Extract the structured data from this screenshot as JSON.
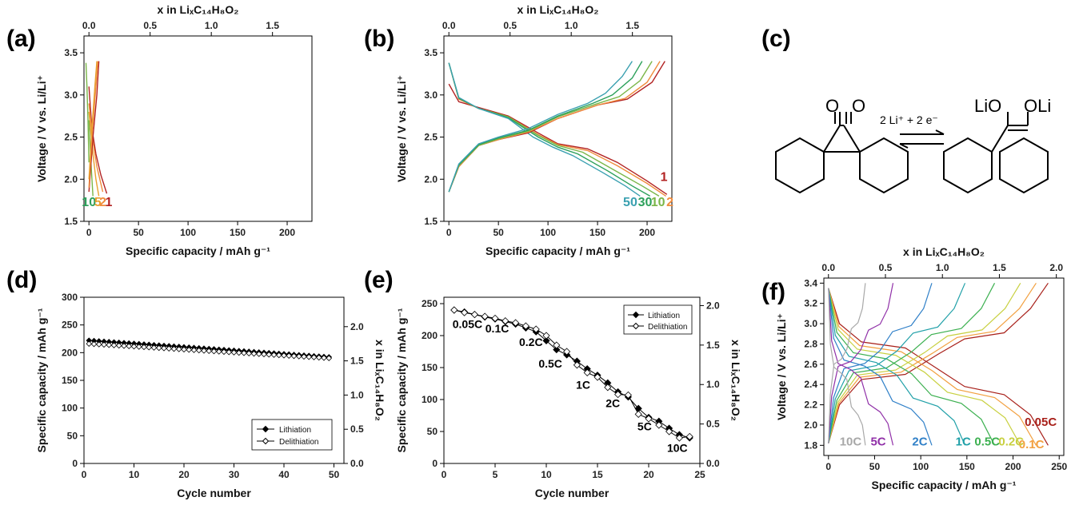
{
  "panels": {
    "a": "(a)",
    "b": "(b)",
    "c": "(c)",
    "d": "(d)",
    "e": "(e)",
    "f": "(f)"
  },
  "colors": {
    "c1": "#b22222",
    "c2": "#f08c3c",
    "c5": "#e8a030",
    "c10": "#7ab648",
    "c30": "#2ca05a",
    "c50": "#3aa0b0",
    "f005": "#a8201a",
    "f01": "#f2a040",
    "f02": "#c8d040",
    "f05": "#3cb050",
    "f1": "#20a0a8",
    "f2": "#3080c8",
    "f5": "#9030a8",
    "f10": "#a8a8a8"
  },
  "chart_data": [
    {
      "id": "a",
      "type": "line",
      "xlabel": "Specific capacity / mAh g⁻¹",
      "ylabel": "Voltage / V vs. Li/Li⁺",
      "x2label": "x in LiₓC₁₄H₈O₂",
      "xlim": [
        -5,
        225
      ],
      "ylim": [
        1.5,
        3.7
      ],
      "xticks": [
        0,
        50,
        100,
        150,
        200
      ],
      "yticks": [
        1.5,
        2.0,
        2.5,
        3.0,
        3.5
      ],
      "x2ticks": [
        0.0,
        0.5,
        1.0,
        1.5
      ],
      "x2_per_x": 0.0081,
      "series": [
        {
          "name": "1",
          "color": "c1",
          "points": [
            [
              0,
              3.1
            ],
            [
              3,
              2.6
            ],
            [
              7,
              2.3
            ],
            [
              12,
              2.05
            ],
            [
              18,
              1.83
            ]
          ]
        },
        {
          "name": "2",
          "color": "c2",
          "points": [
            [
              0,
              2.9
            ],
            [
              4,
              2.45
            ],
            [
              8,
              2.15
            ],
            [
              14,
              1.85
            ]
          ]
        },
        {
          "name": "5",
          "color": "c5",
          "points": [
            [
              0,
              2.8
            ],
            [
              4,
              2.3
            ],
            [
              7,
              2.0
            ],
            [
              10,
              1.8
            ]
          ]
        },
        {
          "name": "10",
          "color": "c10",
          "points": [
            [
              0,
              2.7
            ],
            [
              2,
              2.2
            ],
            [
              4,
              1.8
            ]
          ]
        },
        {
          "name": "c1",
          "color": "c1",
          "points": [
            [
              0,
              1.85
            ],
            [
              4,
              2.5
            ],
            [
              8,
              3.0
            ],
            [
              10,
              3.4
            ]
          ]
        },
        {
          "name": "c2",
          "color": "c2",
          "points": [
            [
              0,
              1.9
            ],
            [
              3,
              2.5
            ],
            [
              7,
              3.1
            ],
            [
              9,
              3.4
            ]
          ]
        },
        {
          "name": "c5",
          "color": "c5",
          "points": [
            [
              0,
              2.0
            ],
            [
              3,
              2.6
            ],
            [
              6,
              3.1
            ],
            [
              8,
              3.4
            ]
          ]
        },
        {
          "name": "c10",
          "color": "c10",
          "points": [
            [
              0,
              2.2
            ],
            [
              -1,
              2.7
            ],
            [
              -2,
              3.1
            ],
            [
              -3,
              3.38
            ]
          ]
        }
      ],
      "annotations": [
        {
          "text": "10",
          "x": 0,
          "y": 1.68,
          "color": "c30"
        },
        {
          "text": "5",
          "x": 9,
          "y": 1.68,
          "color": "c5"
        },
        {
          "text": "2",
          "x": 14,
          "y": 1.68,
          "color": "c2"
        },
        {
          "text": "1",
          "x": 20,
          "y": 1.68,
          "color": "c1"
        }
      ]
    },
    {
      "id": "b",
      "type": "line",
      "xlabel": "Specific capacity / mAh g⁻¹",
      "ylabel": "Voltage / V vs. Li/Li⁺",
      "x2label": "x in LiₓC₁₄H₈O₂",
      "xlim": [
        -5,
        225
      ],
      "ylim": [
        1.5,
        3.7
      ],
      "xticks": [
        0,
        50,
        100,
        150,
        200
      ],
      "yticks": [
        1.5,
        2.0,
        2.5,
        3.0,
        3.5
      ],
      "x2ticks": [
        0.0,
        0.5,
        1.0,
        1.5
      ],
      "x2_per_x": 0.0081,
      "series": [
        {
          "name": "1",
          "color": "c1",
          "points": [
            [
              0,
              3.13
            ],
            [
              10,
              2.92
            ],
            [
              30,
              2.85
            ],
            [
              60,
              2.75
            ],
            [
              90,
              2.55
            ],
            [
              110,
              2.42
            ],
            [
              140,
              2.36
            ],
            [
              170,
              2.2
            ],
            [
              200,
              1.98
            ],
            [
              220,
              1.82
            ]
          ]
        },
        {
          "name": "2",
          "color": "c2",
          "points": [
            [
              0,
              3.38
            ],
            [
              10,
              2.95
            ],
            [
              30,
              2.84
            ],
            [
              60,
              2.74
            ],
            [
              90,
              2.53
            ],
            [
              110,
              2.41
            ],
            [
              140,
              2.34
            ],
            [
              170,
              2.16
            ],
            [
              200,
              1.95
            ],
            [
              219,
              1.8
            ]
          ]
        },
        {
          "name": "10",
          "color": "c10",
          "points": [
            [
              0,
              3.38
            ],
            [
              10,
              2.96
            ],
            [
              30,
              2.84
            ],
            [
              60,
              2.74
            ],
            [
              90,
              2.52
            ],
            [
              110,
              2.4
            ],
            [
              135,
              2.32
            ],
            [
              165,
              2.12
            ],
            [
              195,
              1.92
            ],
            [
              212,
              1.8
            ]
          ]
        },
        {
          "name": "30",
          "color": "c30",
          "points": [
            [
              0,
              3.38
            ],
            [
              10,
              2.96
            ],
            [
              30,
              2.84
            ],
            [
              60,
              2.73
            ],
            [
              90,
              2.5
            ],
            [
              110,
              2.38
            ],
            [
              130,
              2.3
            ],
            [
              160,
              2.1
            ],
            [
              185,
              1.92
            ],
            [
              203,
              1.8
            ]
          ]
        },
        {
          "name": "50",
          "color": "c50",
          "points": [
            [
              0,
              3.38
            ],
            [
              10,
              2.97
            ],
            [
              30,
              2.84
            ],
            [
              60,
              2.72
            ],
            [
              85,
              2.5
            ],
            [
              105,
              2.38
            ],
            [
              125,
              2.28
            ],
            [
              155,
              2.08
            ],
            [
              178,
              1.92
            ],
            [
              193,
              1.8
            ]
          ]
        },
        {
          "name": "1c",
          "color": "c1",
          "points": [
            [
              0,
              1.85
            ],
            [
              10,
              2.15
            ],
            [
              30,
              2.4
            ],
            [
              50,
              2.47
            ],
            [
              80,
              2.55
            ],
            [
              110,
              2.72
            ],
            [
              150,
              2.88
            ],
            [
              180,
              2.95
            ],
            [
              205,
              3.15
            ],
            [
              218,
              3.4
            ]
          ]
        },
        {
          "name": "2c",
          "color": "c2",
          "points": [
            [
              0,
              1.85
            ],
            [
              10,
              2.15
            ],
            [
              30,
              2.4
            ],
            [
              50,
              2.47
            ],
            [
              80,
              2.56
            ],
            [
              110,
              2.72
            ],
            [
              150,
              2.88
            ],
            [
              178,
              2.96
            ],
            [
              200,
              3.15
            ],
            [
              213,
              3.4
            ]
          ]
        },
        {
          "name": "10c",
          "color": "c10",
          "points": [
            [
              0,
              1.85
            ],
            [
              10,
              2.16
            ],
            [
              30,
              2.4
            ],
            [
              50,
              2.48
            ],
            [
              80,
              2.57
            ],
            [
              110,
              2.74
            ],
            [
              148,
              2.89
            ],
            [
              172,
              2.98
            ],
            [
              193,
              3.17
            ],
            [
              205,
              3.4
            ]
          ]
        },
        {
          "name": "30c",
          "color": "c30",
          "points": [
            [
              0,
              1.85
            ],
            [
              10,
              2.17
            ],
            [
              30,
              2.41
            ],
            [
              50,
              2.49
            ],
            [
              80,
              2.58
            ],
            [
              110,
              2.75
            ],
            [
              145,
              2.9
            ],
            [
              165,
              3.0
            ],
            [
              185,
              3.2
            ],
            [
              195,
              3.4
            ]
          ]
        },
        {
          "name": "50c",
          "color": "c50",
          "points": [
            [
              0,
              1.85
            ],
            [
              10,
              2.18
            ],
            [
              30,
              2.42
            ],
            [
              50,
              2.5
            ],
            [
              80,
              2.6
            ],
            [
              110,
              2.77
            ],
            [
              140,
              2.9
            ],
            [
              158,
              3.02
            ],
            [
              175,
              3.22
            ],
            [
              185,
              3.4
            ]
          ]
        }
      ],
      "annotations": [
        {
          "text": "1",
          "x": 217,
          "y": 1.98,
          "color": "c1"
        },
        {
          "text": "50",
          "x": 183,
          "y": 1.68,
          "color": "c50"
        },
        {
          "text": "30",
          "x": 198,
          "y": 1.68,
          "color": "c30"
        },
        {
          "text": "10",
          "x": 211,
          "y": 1.68,
          "color": "c10"
        },
        {
          "text": "2",
          "x": 223,
          "y": 1.68,
          "color": "c2"
        }
      ]
    },
    {
      "id": "d",
      "type": "scatter",
      "xlabel": "Cycle number",
      "ylabel": "Specific capacity / mAh g⁻¹",
      "y2label": "x in LiₓC₁₄H₈O₂",
      "xlim": [
        0,
        52
      ],
      "ylim": [
        0,
        300
      ],
      "xticks": [
        0,
        10,
        20,
        30,
        40,
        50
      ],
      "yticks": [
        0,
        50,
        100,
        150,
        200,
        250,
        300
      ],
      "y2ticks": [
        0.0,
        0.5,
        1.0,
        1.5,
        2.0
      ],
      "y2_per_y": 0.0081,
      "legend": "bottom-right",
      "series": [
        {
          "name": "Lithiation",
          "marker": "filled-diamond",
          "start": 222,
          "end": 192,
          "x_start": 1,
          "x_end": 49
        },
        {
          "name": "Delithiation",
          "marker": "open-diamond",
          "start": 216,
          "end": 190,
          "x_start": 1,
          "x_end": 49
        }
      ]
    },
    {
      "id": "e",
      "type": "line",
      "xlabel": "Cycle number",
      "ylabel": "Specific capacity / mAh g⁻¹",
      "y2label": "x in LiₓC₁₄H₈O₂",
      "xlim": [
        0,
        25
      ],
      "ylim": [
        0,
        260
      ],
      "xticks": [
        0,
        5,
        10,
        15,
        20,
        25
      ],
      "yticks": [
        0,
        50,
        100,
        150,
        200,
        250
      ],
      "y2ticks": [
        0.0,
        0.5,
        1.0,
        1.5,
        2.0
      ],
      "y2_per_y": 0.0081,
      "legend": "top-right",
      "series": [
        {
          "name": "Lithiation",
          "marker": "filled-diamond",
          "x": [
            1,
            2,
            3,
            4,
            5,
            6,
            7,
            8,
            9,
            10,
            11,
            12,
            13,
            14,
            15,
            16,
            17,
            18,
            19,
            20,
            21,
            22,
            23,
            24
          ],
          "values": [
            240,
            237,
            233,
            229,
            226,
            222,
            218,
            212,
            206,
            192,
            178,
            170,
            160,
            148,
            138,
            126,
            112,
            104,
            86,
            72,
            66,
            55,
            45,
            40
          ]
        },
        {
          "name": "Delithiation",
          "marker": "open-diamond",
          "x": [
            1,
            2,
            3,
            4,
            5,
            6,
            7,
            8,
            9,
            10,
            11,
            12,
            13,
            14,
            15,
            16,
            17,
            18,
            19,
            20,
            21,
            22,
            23,
            24
          ],
          "values": [
            240,
            236,
            233,
            230,
            227,
            223,
            220,
            215,
            210,
            200,
            185,
            175,
            154,
            142,
            135,
            119,
            108,
            107,
            77,
            70,
            60,
            50,
            40,
            42
          ]
        }
      ],
      "annotations": [
        {
          "text": "0.05C",
          "x": 2.3,
          "y": 212
        },
        {
          "text": "0.1C",
          "x": 5.2,
          "y": 205
        },
        {
          "text": "0.2C",
          "x": 8.5,
          "y": 184
        },
        {
          "text": "0.5C",
          "x": 10.4,
          "y": 150
        },
        {
          "text": "1C",
          "x": 13.6,
          "y": 117
        },
        {
          "text": "2C",
          "x": 16.5,
          "y": 88
        },
        {
          "text": "5C",
          "x": 19.6,
          "y": 52
        },
        {
          "text": "10C",
          "x": 22.8,
          "y": 18
        }
      ]
    },
    {
      "id": "f",
      "type": "line",
      "xlabel": "Specific capacity / mAh g⁻¹",
      "ylabel": "Voltage / V vs. Li/Li⁺",
      "x2label": "x in LiₓC₁₄H₈O₂",
      "xlim": [
        -5,
        255
      ],
      "ylim": [
        1.7,
        3.45
      ],
      "xticks": [
        0,
        50,
        100,
        150,
        200,
        250
      ],
      "yticks": [
        1.8,
        2.0,
        2.2,
        2.4,
        2.6,
        2.8,
        3.0,
        3.2,
        3.4
      ],
      "x2ticks": [
        0.0,
        0.5,
        1.0,
        1.5,
        2.0
      ],
      "x2_per_x": 0.0081,
      "series": [
        {
          "name": "0.05C",
          "color": "f005",
          "cap": 238
        },
        {
          "name": "0.1C",
          "color": "f01",
          "cap": 225
        },
        {
          "name": "0.2C",
          "color": "f02",
          "cap": 208
        },
        {
          "name": "0.5C",
          "color": "f05",
          "cap": 180
        },
        {
          "name": "1C",
          "color": "f1",
          "cap": 148
        },
        {
          "name": "2C",
          "color": "f2",
          "cap": 112
        },
        {
          "name": "5C",
          "color": "f5",
          "cap": 70
        },
        {
          "name": "10C",
          "color": "f10",
          "cap": 40
        }
      ],
      "annotations": [
        {
          "text": "0.05C",
          "x": 230,
          "y": 1.99,
          "color": "f005"
        },
        {
          "text": "0.1C",
          "x": 220,
          "y": 1.77,
          "color": "f01"
        },
        {
          "text": "0.2C",
          "x": 198,
          "y": 1.8,
          "color": "f02"
        },
        {
          "text": "0.5C",
          "x": 172,
          "y": 1.8,
          "color": "f05"
        },
        {
          "text": "1C",
          "x": 146,
          "y": 1.8,
          "color": "f1"
        },
        {
          "text": "2C",
          "x": 99,
          "y": 1.8,
          "color": "f2"
        },
        {
          "text": "5C",
          "x": 54,
          "y": 1.8,
          "color": "f5"
        },
        {
          "text": "10C",
          "x": 24,
          "y": 1.8,
          "color": "f10"
        }
      ]
    }
  ],
  "scheme": {
    "o1": "O",
    "o2": "O",
    "reagent": "2 Li⁺ + 2 e⁻",
    "lio1": "LiO",
    "lio2": "OLi"
  }
}
